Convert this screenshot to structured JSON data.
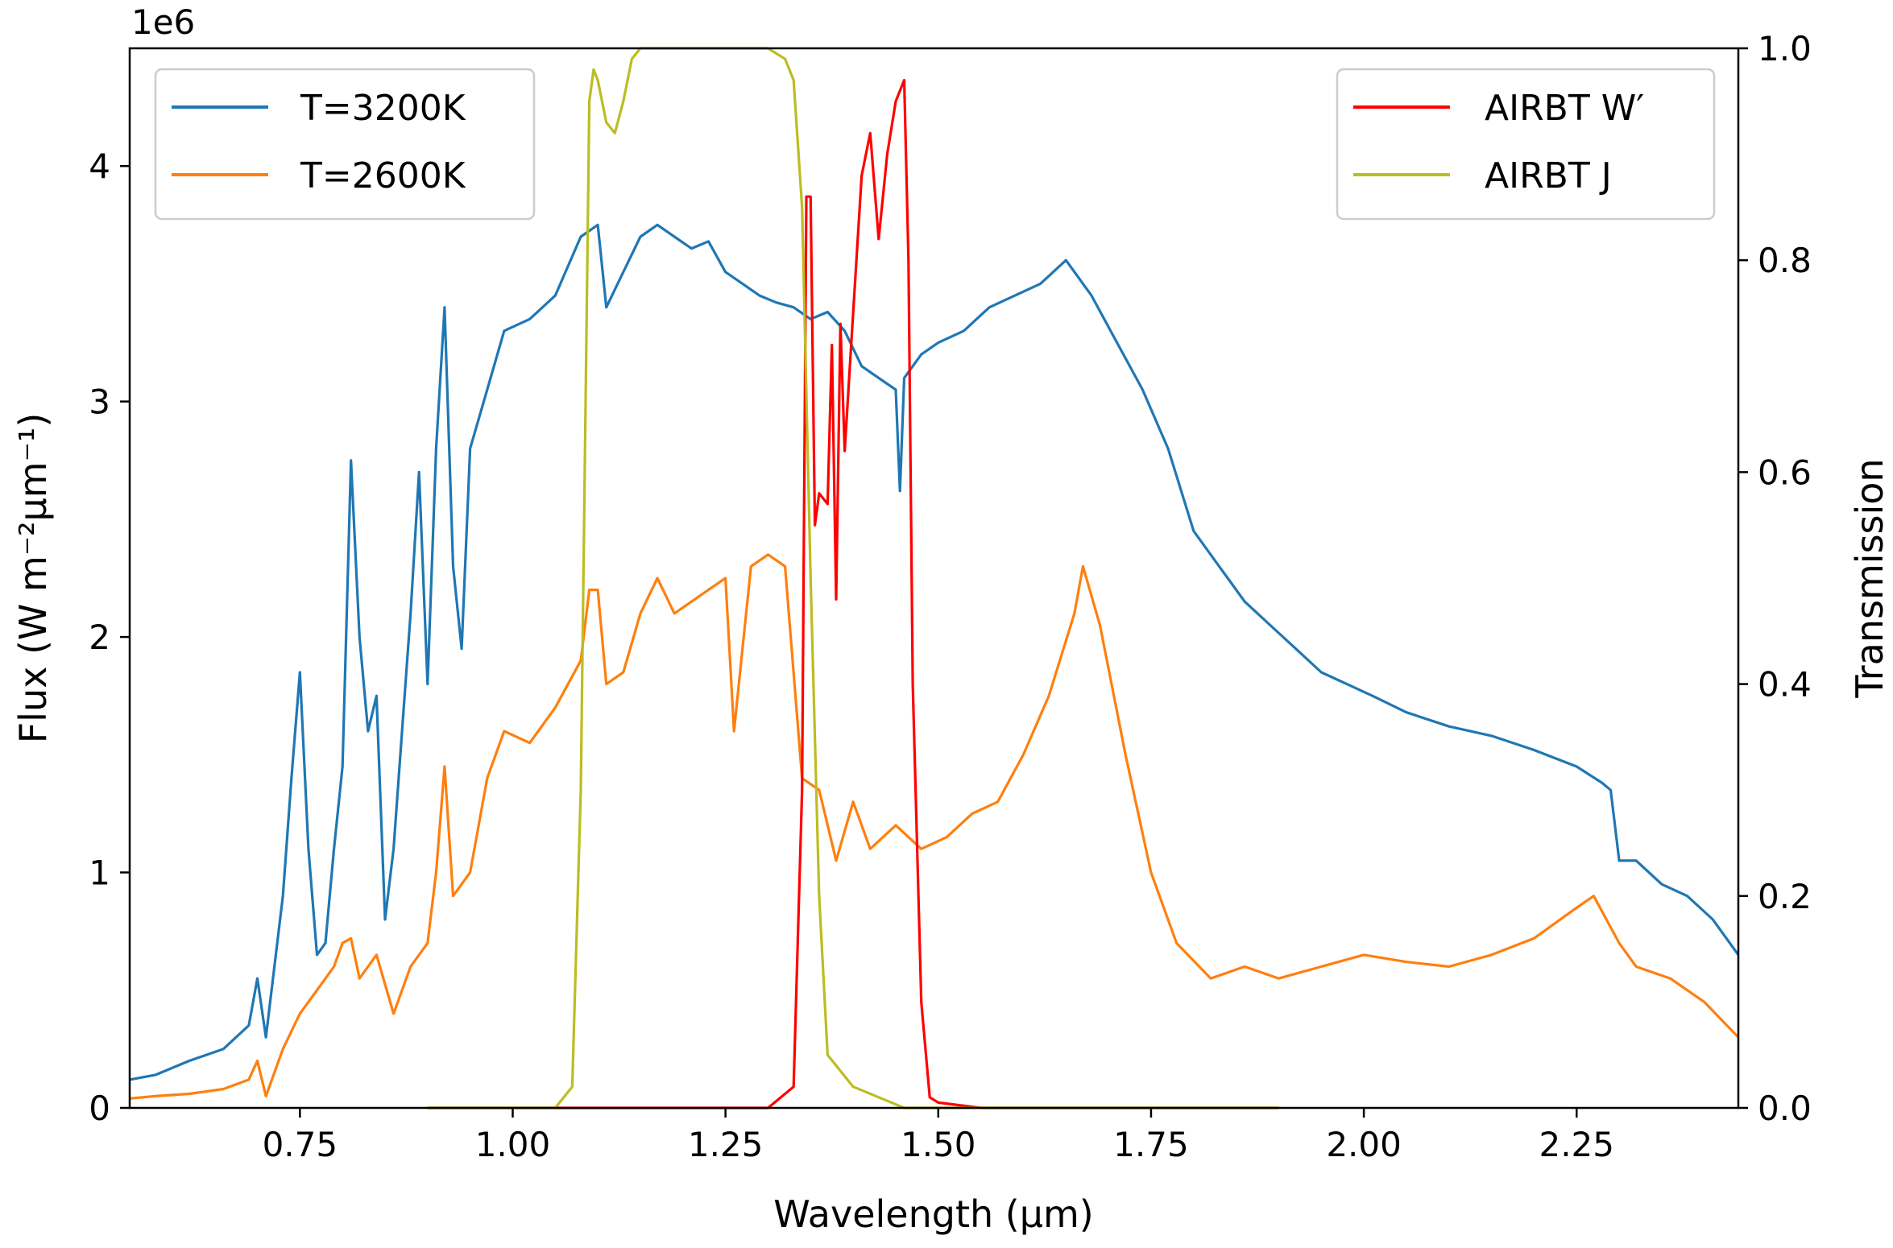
{
  "chart_data": {
    "type": "line",
    "xlabel": "Wavelength (μm)",
    "ylabel_left": "Flux (W m⁻²μm⁻¹)",
    "ylabel_right": "Transmission",
    "left_offset_label": "1e6",
    "xlim": [
      0.55,
      2.44
    ],
    "ylim_left": [
      0,
      4.5
    ],
    "ylim_right": [
      0,
      1.0
    ],
    "x_ticks": [
      "0.75",
      "1.00",
      "1.25",
      "1.50",
      "1.75",
      "2.00",
      "2.25"
    ],
    "y_left_ticks": [
      "0",
      "1",
      "2",
      "3",
      "4"
    ],
    "y_right_ticks": [
      "0.0",
      "0.2",
      "0.4",
      "0.6",
      "0.8",
      "1.0"
    ],
    "grid": false,
    "legend_left": {
      "placement": "top-left",
      "entries": [
        {
          "name": "T=3200K",
          "color": "#1f77b4"
        },
        {
          "name": "T=2600K",
          "color": "#ff7f0e"
        }
      ]
    },
    "legend_right": {
      "placement": "top-right",
      "entries": [
        {
          "name": "AIRBT W′",
          "color": "#ff0000"
        },
        {
          "name": "AIRBT J",
          "color": "#bcbd22"
        }
      ]
    },
    "series": [
      {
        "name": "T=3200K",
        "axis": "left",
        "color": "#1f77b4",
        "x": [
          0.55,
          0.58,
          0.62,
          0.66,
          0.69,
          0.7,
          0.71,
          0.73,
          0.74,
          0.75,
          0.76,
          0.77,
          0.78,
          0.79,
          0.8,
          0.81,
          0.82,
          0.83,
          0.84,
          0.85,
          0.86,
          0.87,
          0.88,
          0.89,
          0.9,
          0.91,
          0.92,
          0.93,
          0.94,
          0.95,
          0.97,
          0.99,
          1.02,
          1.05,
          1.08,
          1.1,
          1.11,
          1.13,
          1.15,
          1.17,
          1.19,
          1.21,
          1.23,
          1.25,
          1.27,
          1.29,
          1.31,
          1.33,
          1.35,
          1.37,
          1.39,
          1.41,
          1.43,
          1.45,
          1.455,
          1.46,
          1.48,
          1.5,
          1.53,
          1.56,
          1.59,
          1.62,
          1.65,
          1.68,
          1.71,
          1.74,
          1.77,
          1.8,
          1.83,
          1.86,
          1.89,
          1.92,
          1.95,
          1.98,
          2.01,
          2.05,
          2.1,
          2.15,
          2.2,
          2.25,
          2.28,
          2.29,
          2.3,
          2.32,
          2.35,
          2.38,
          2.41,
          2.44
        ],
        "y": [
          0.12,
          0.14,
          0.2,
          0.25,
          0.35,
          0.55,
          0.3,
          0.9,
          1.4,
          1.85,
          1.1,
          0.65,
          0.7,
          1.1,
          1.45,
          2.75,
          2.0,
          1.6,
          1.75,
          0.8,
          1.1,
          1.6,
          2.1,
          2.7,
          1.8,
          2.8,
          3.4,
          2.3,
          1.95,
          2.8,
          3.05,
          3.3,
          3.35,
          3.45,
          3.7,
          3.75,
          3.4,
          3.55,
          3.7,
          3.75,
          3.7,
          3.65,
          3.68,
          3.55,
          3.5,
          3.45,
          3.42,
          3.4,
          3.35,
          3.38,
          3.3,
          3.15,
          3.1,
          3.05,
          2.62,
          3.1,
          3.2,
          3.25,
          3.3,
          3.4,
          3.45,
          3.5,
          3.6,
          3.45,
          3.25,
          3.05,
          2.8,
          2.45,
          2.3,
          2.15,
          2.05,
          1.95,
          1.85,
          1.8,
          1.75,
          1.68,
          1.62,
          1.58,
          1.52,
          1.45,
          1.38,
          1.35,
          1.05,
          1.05,
          0.95,
          0.9,
          0.8,
          0.65
        ]
      },
      {
        "name": "T=2600K",
        "axis": "left",
        "color": "#ff7f0e",
        "x": [
          0.55,
          0.58,
          0.62,
          0.66,
          0.69,
          0.7,
          0.71,
          0.73,
          0.75,
          0.77,
          0.79,
          0.8,
          0.81,
          0.82,
          0.83,
          0.84,
          0.86,
          0.88,
          0.9,
          0.91,
          0.92,
          0.93,
          0.95,
          0.97,
          0.99,
          1.02,
          1.05,
          1.08,
          1.09,
          1.1,
          1.11,
          1.13,
          1.15,
          1.17,
          1.19,
          1.21,
          1.23,
          1.25,
          1.26,
          1.28,
          1.3,
          1.32,
          1.34,
          1.36,
          1.38,
          1.4,
          1.42,
          1.45,
          1.48,
          1.51,
          1.54,
          1.57,
          1.6,
          1.63,
          1.66,
          1.67,
          1.69,
          1.72,
          1.75,
          1.78,
          1.82,
          1.86,
          1.9,
          1.95,
          2.0,
          2.05,
          2.1,
          2.15,
          2.2,
          2.25,
          2.27,
          2.3,
          2.32,
          2.36,
          2.4,
          2.44
        ],
        "y": [
          0.04,
          0.05,
          0.06,
          0.08,
          0.12,
          0.2,
          0.05,
          0.25,
          0.4,
          0.5,
          0.6,
          0.7,
          0.72,
          0.55,
          0.6,
          0.65,
          0.4,
          0.6,
          0.7,
          1.0,
          1.45,
          0.9,
          1.0,
          1.4,
          1.6,
          1.55,
          1.7,
          1.9,
          2.2,
          2.2,
          1.8,
          1.85,
          2.1,
          2.25,
          2.1,
          2.15,
          2.2,
          2.25,
          1.6,
          2.3,
          2.35,
          2.3,
          1.4,
          1.35,
          1.05,
          1.3,
          1.1,
          1.2,
          1.1,
          1.15,
          1.25,
          1.3,
          1.5,
          1.75,
          2.1,
          2.3,
          2.05,
          1.5,
          1.0,
          0.7,
          0.55,
          0.6,
          0.55,
          0.6,
          0.65,
          0.62,
          0.6,
          0.65,
          0.72,
          0.85,
          0.9,
          0.7,
          0.6,
          0.55,
          0.45,
          0.3
        ]
      },
      {
        "name": "AIRBT W′",
        "axis": "right",
        "color": "#ff0000",
        "x": [
          0.9,
          1.3,
          1.33,
          1.34,
          1.345,
          1.35,
          1.355,
          1.36,
          1.37,
          1.375,
          1.38,
          1.385,
          1.39,
          1.4,
          1.41,
          1.42,
          1.43,
          1.44,
          1.45,
          1.46,
          1.465,
          1.47,
          1.48,
          1.49,
          1.5,
          1.55,
          1.9
        ],
        "y": [
          0,
          0,
          0.02,
          0.3,
          0.86,
          0.86,
          0.55,
          0.58,
          0.57,
          0.72,
          0.48,
          0.74,
          0.62,
          0.75,
          0.88,
          0.92,
          0.82,
          0.9,
          0.95,
          0.97,
          0.8,
          0.4,
          0.1,
          0.01,
          0.005,
          0,
          0
        ]
      },
      {
        "name": "AIRBT J",
        "axis": "right",
        "color": "#bcbd22",
        "x": [
          0.9,
          1.05,
          1.07,
          1.08,
          1.09,
          1.095,
          1.1,
          1.11,
          1.12,
          1.13,
          1.14,
          1.15,
          1.17,
          1.2,
          1.25,
          1.3,
          1.32,
          1.33,
          1.34,
          1.35,
          1.36,
          1.37,
          1.38,
          1.4,
          1.43,
          1.46,
          1.9
        ],
        "y": [
          0,
          0,
          0.02,
          0.3,
          0.95,
          0.98,
          0.97,
          0.93,
          0.92,
          0.95,
          0.99,
          1.0,
          1.0,
          1.0,
          1.0,
          1.0,
          0.99,
          0.97,
          0.85,
          0.5,
          0.2,
          0.05,
          0.04,
          0.02,
          0.01,
          0.0,
          0
        ]
      }
    ]
  }
}
